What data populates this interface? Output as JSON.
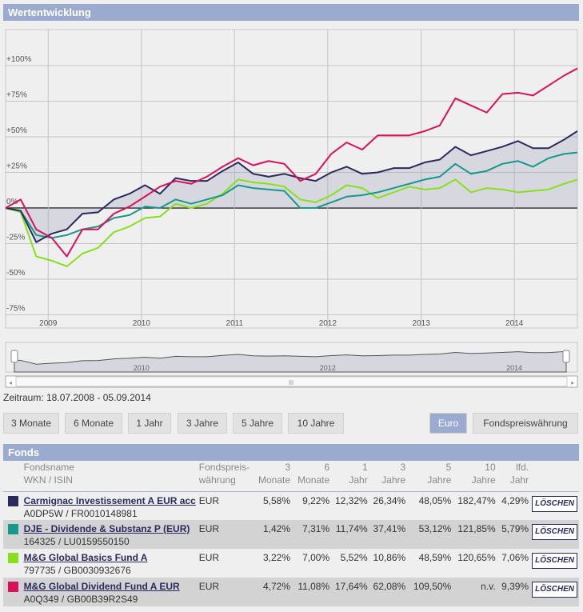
{
  "header": {
    "title": "Wertentwicklung"
  },
  "chart_data": {
    "type": "line",
    "yticks": [
      "+100%",
      "+75%",
      "+50%",
      "+25%",
      "0%",
      "-25%",
      "-50%",
      "-75%"
    ],
    "ytick_values": [
      100,
      75,
      50,
      25,
      0,
      -25,
      -50,
      -75
    ],
    "ylim": [
      -77,
      115
    ],
    "xlim": [
      "2008-07-18",
      "2014-09-05"
    ],
    "xticks": [
      "2009",
      "2010",
      "2011",
      "2012",
      "2013",
      "2014"
    ],
    "grid": true,
    "x": [
      "2008-07",
      "2008-09",
      "2008-11",
      "2009-01",
      "2009-03",
      "2009-05",
      "2009-07",
      "2009-09",
      "2009-11",
      "2010-01",
      "2010-03",
      "2010-05",
      "2010-07",
      "2010-09",
      "2010-11",
      "2011-01",
      "2011-03",
      "2011-05",
      "2011-07",
      "2011-09",
      "2011-11",
      "2012-01",
      "2012-03",
      "2012-05",
      "2012-07",
      "2012-09",
      "2012-11",
      "2013-01",
      "2013-03",
      "2013-05",
      "2013-07",
      "2013-09",
      "2013-11",
      "2014-01",
      "2014-03",
      "2014-05",
      "2014-07",
      "2014-09"
    ],
    "series": [
      {
        "name": "Carmignac Investissement A EUR acc",
        "color": "#2a2a5e",
        "area": true,
        "values": [
          0,
          -2,
          -24,
          -18,
          -15,
          -4,
          -3,
          6,
          10,
          16,
          10,
          21,
          19,
          19,
          26,
          32,
          24,
          22,
          24,
          21,
          19,
          25,
          29,
          24,
          25,
          28,
          28,
          32,
          34,
          43,
          37,
          40,
          43,
          47,
          42,
          42,
          48,
          54
        ]
      },
      {
        "name": "DJE - Dividende & Substanz P (EUR)",
        "color": "#14998a",
        "values": [
          0,
          -2,
          -19,
          -21,
          -19,
          -15,
          -13,
          -7,
          -5,
          1,
          0,
          6,
          3,
          6,
          9,
          16,
          14,
          13,
          12,
          0,
          0,
          4,
          8,
          9,
          11,
          14,
          17,
          20,
          22,
          31,
          24,
          26,
          31,
          33,
          29,
          35,
          38,
          39
        ]
      },
      {
        "name": "M&G Global Basics Fund A",
        "color": "#88e01a",
        "values": [
          0,
          -3,
          -34,
          -37,
          -41,
          -32,
          -28,
          -17,
          -13,
          -7,
          -6,
          3,
          0,
          3,
          10,
          20,
          18,
          17,
          15,
          6,
          4,
          9,
          16,
          14,
          7,
          11,
          15,
          13,
          14,
          20,
          11,
          14,
          13,
          11,
          12,
          13,
          17,
          20
        ]
      },
      {
        "name": "M&G Global Dividend Fund A EUR",
        "color": "#d8115b",
        "values": [
          0,
          6,
          -15,
          -21,
          -34,
          -15,
          -15,
          -4,
          1,
          8,
          15,
          19,
          17,
          22,
          29,
          35,
          30,
          33,
          31,
          19,
          24,
          38,
          46,
          41,
          51,
          51,
          51,
          54,
          58,
          77,
          72,
          67,
          80,
          81,
          79,
          86,
          93,
          98
        ]
      }
    ],
    "navigator_xticks": [
      "2010",
      "2012",
      "2014"
    ]
  },
  "range_text": "Zeitraum: 18.07.2008 - 05.09.2014",
  "period_buttons": [
    "3 Monate",
    "6 Monate",
    "1 Jahr",
    "3 Jahre",
    "5 Jahre",
    "10 Jahre"
  ],
  "currency_buttons": [
    "Euro",
    "Fondspreiswährung"
  ],
  "fonds": {
    "title": "Fonds",
    "headers": {
      "name1": "Fondsname",
      "name2": "WKN / ISIN",
      "cur1": "Fondspreis-",
      "cur2": "währung",
      "m3a": "3",
      "m3b": "Monate",
      "m6a": "6",
      "m6b": "Monate",
      "y1a": "1",
      "y1b": "Jahr",
      "y3a": "3",
      "y3b": "Jahre",
      "y5a": "5",
      "y5b": "Jahre",
      "y10a": "10",
      "y10b": "Jahre",
      "ytda": "lfd.",
      "ytdb": "Jahr"
    },
    "rows": [
      {
        "color": "#2a2a5e",
        "name": "Carmignac Investissement A EUR acc",
        "ids": "A0DP5W / FR0010148981",
        "currency": "EUR",
        "m3": "5,58%",
        "m6": "9,22%",
        "y1": "12,32%",
        "y3": "26,34%",
        "y5": "48,05%",
        "y10": "182,47%",
        "ytd": "4,29%",
        "delete": "LÖSCHEN"
      },
      {
        "color": "#14998a",
        "name": "DJE - Dividende & Substanz P (EUR)",
        "ids": "164325 / LU0159550150",
        "currency": "EUR",
        "m3": "1,42%",
        "m6": "7,31%",
        "y1": "11,74%",
        "y3": "37,41%",
        "y5": "53,12%",
        "y10": "121,85%",
        "ytd": "5,79%",
        "delete": "LÖSCHEN"
      },
      {
        "color": "#88e01a",
        "name": "M&G Global Basics Fund A",
        "ids": "797735 / GB0030932676",
        "currency": "EUR",
        "m3": "3,22%",
        "m6": "7,00%",
        "y1": "5,52%",
        "y3": "10,86%",
        "y5": "48,59%",
        "y10": "120,65%",
        "ytd": "7,06%",
        "delete": "LÖSCHEN"
      },
      {
        "color": "#d8115b",
        "name": "M&G Global Dividend Fund A EUR",
        "ids": "A0Q349 / GB00B39R2S49",
        "currency": "EUR",
        "m3": "4,72%",
        "m6": "11,08%",
        "y1": "17,64%",
        "y3": "62,08%",
        "y5": "109,50%",
        "y10": "n.v.",
        "ytd": "9,39%",
        "delete": "LÖSCHEN"
      }
    ]
  }
}
